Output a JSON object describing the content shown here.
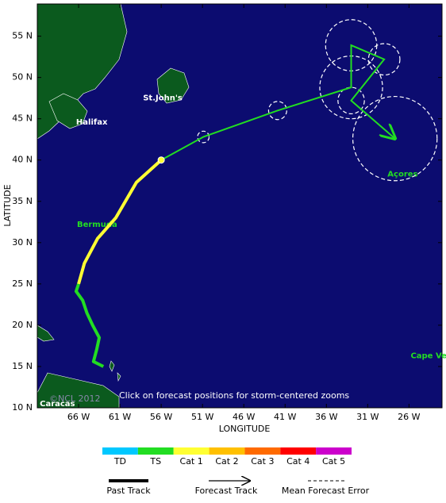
{
  "map": {
    "xlabel": "LONGITUDE",
    "ylabel": "LATITUDE",
    "xlim": [
      -71,
      -22
    ],
    "ylim": [
      10,
      58.9
    ],
    "xticks": [
      {
        "value": -66,
        "label": "66 W"
      },
      {
        "value": -61,
        "label": "61 W"
      },
      {
        "value": -56,
        "label": "56 W"
      },
      {
        "value": -51,
        "label": "51 W"
      },
      {
        "value": -46,
        "label": "46 W"
      },
      {
        "value": -41,
        "label": "41 W"
      },
      {
        "value": -36,
        "label": "36 W"
      },
      {
        "value": -31,
        "label": "31 W"
      },
      {
        "value": -26,
        "label": "26 W"
      }
    ],
    "yticks": [
      {
        "value": 10,
        "label": "10 N"
      },
      {
        "value": 15,
        "label": "15 N"
      },
      {
        "value": 20,
        "label": "20 N"
      },
      {
        "value": 25,
        "label": "25 N"
      },
      {
        "value": 30,
        "label": "30 N"
      },
      {
        "value": 35,
        "label": "35 N"
      },
      {
        "value": 40,
        "label": "40 N"
      },
      {
        "value": 45,
        "label": "45 N"
      },
      {
        "value": 50,
        "label": "50 N"
      },
      {
        "value": 55,
        "label": "55 N"
      }
    ],
    "past_track": [
      {
        "color": "#22dd22",
        "lon": [
          -63,
          -64.2,
          -63.8,
          -63.5,
          -64.3,
          -65,
          -65.5,
          -66.3,
          -66
        ],
        "lat": [
          15,
          15.6,
          17.1,
          18.5,
          20,
          21.5,
          23,
          24.1,
          25
        ]
      },
      {
        "color": "#ffff33",
        "lon": [
          -66,
          -65.3,
          -63.7,
          -61.5,
          -59,
          -56
        ],
        "lat": [
          25,
          27.5,
          30.5,
          33,
          37.3,
          40
        ]
      }
    ],
    "forecast": {
      "color": "#22dd22",
      "lon": [
        -56,
        -50.9,
        -41.9,
        -33,
        -33,
        -29,
        -33,
        -27.7
      ],
      "lat": [
        40,
        42.8,
        46,
        48.8,
        53.9,
        52.2,
        47.2,
        42.6
      ],
      "error": [
        null,
        0.7,
        1.1,
        3.8,
        3.1,
        1.9,
        1.6,
        5.1
      ]
    },
    "places": [
      {
        "label": "Bermuda",
        "lon": -66.2,
        "lat": 32.2,
        "color": "#22dd22"
      },
      {
        "label": "St.John's",
        "lon": -58.2,
        "lat": 47.5,
        "color": "#ffffff"
      },
      {
        "label": "Halifax",
        "lon": -66.3,
        "lat": 44.6,
        "color": "#ffffff"
      },
      {
        "label": "Açores",
        "lon": -28.6,
        "lat": 38.3,
        "color": "#22dd22"
      },
      {
        "label": "Cape Verde",
        "lon": -25.8,
        "lat": 16.3,
        "color": "#22dd22"
      },
      {
        "label": "Caracas",
        "lon": -70.7,
        "lat": 10.5,
        "color": "#ffffff"
      }
    ],
    "credit": "©NCL 2012",
    "note": "Click on forecast positions for storm-centered zooms"
  },
  "legend": {
    "categories": [
      {
        "label": "TD",
        "color": "#00c8ff"
      },
      {
        "label": "TS",
        "color": "#22dd22"
      },
      {
        "label": "Cat 1",
        "color": "#ffff33"
      },
      {
        "label": "Cat 2",
        "color": "#ffc000"
      },
      {
        "label": "Cat 3",
        "color": "#ff6a00"
      },
      {
        "label": "Cat 4",
        "color": "#ff0000"
      },
      {
        "label": "Cat 5",
        "color": "#cc00cc"
      }
    ],
    "past_track": "Past Track",
    "forecast_track": "Forecast Track",
    "error": "Mean Forecast Error"
  }
}
